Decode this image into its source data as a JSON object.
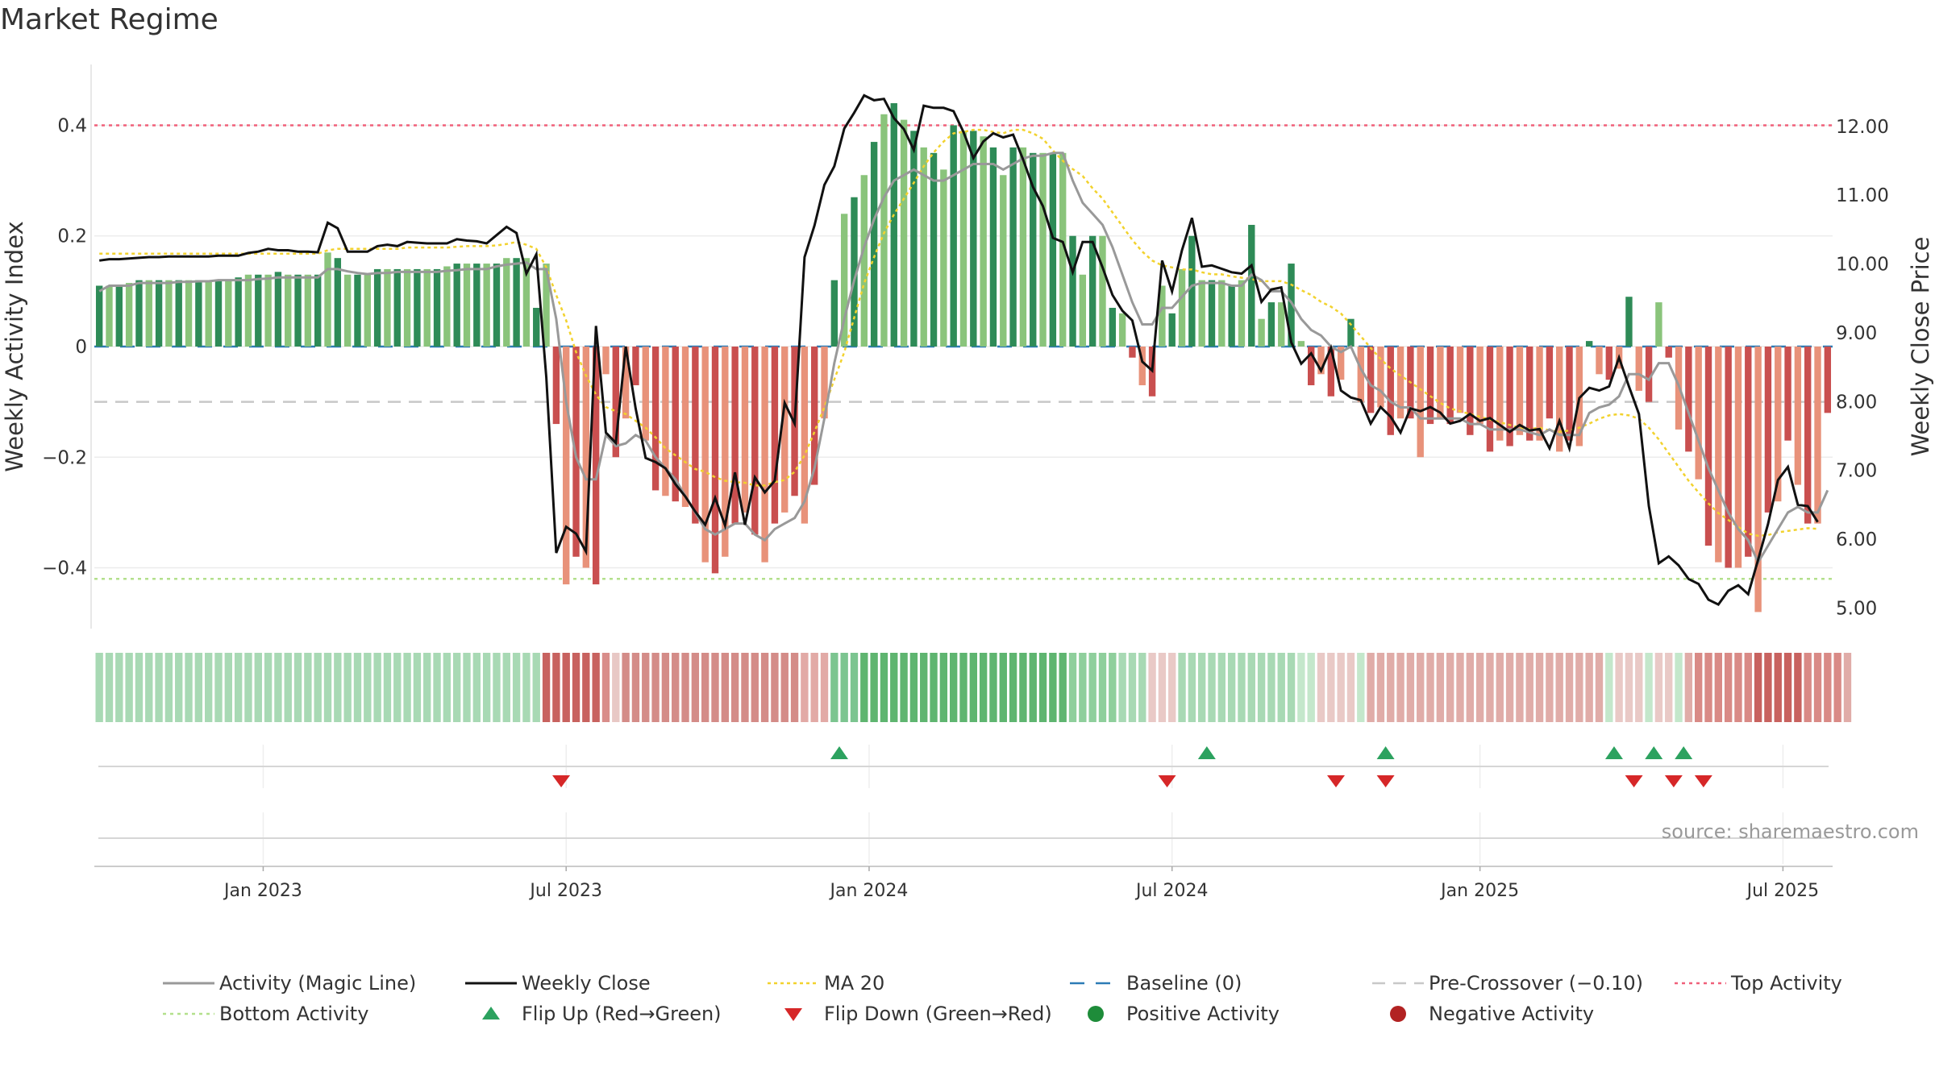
{
  "title": "Market Regime",
  "source": "source: sharemaestro.com",
  "colors": {
    "dark_green": "#2e8b57",
    "light_green": "#8ac47b",
    "dark_red": "#c94f4f",
    "light_red": "#e8927a",
    "magic_line": "#999999",
    "close_line": "#111111",
    "ma20": "#f2d22e",
    "baseline": "#2c7bb6",
    "pre_crossover": "#c8c8c8",
    "top_activity": "#f0607a",
    "bottom_activity": "#b3e08c",
    "flip_up": "#2ca25f",
    "flip_down": "#d62728",
    "positive": "#1e8c3a",
    "negative": "#b22222"
  },
  "legend": [
    {
      "label": "Activity (Magic Line)",
      "icon": "gray-solid-line"
    },
    {
      "label": "Weekly Close",
      "icon": "black-solid-line"
    },
    {
      "label": "MA 20",
      "icon": "yellow-dotted-line"
    },
    {
      "label": "Baseline (0)",
      "icon": "blue-dashed-line"
    },
    {
      "label": "Pre-Crossover (−0.10)",
      "icon": "gray-dashed-line"
    },
    {
      "label": "Top Activity",
      "icon": "pink-dotted-line"
    },
    {
      "label": "Bottom Activity",
      "icon": "green-dotted-line"
    },
    {
      "label": "Flip Up (Red→Green)",
      "icon": "up-triangle"
    },
    {
      "label": "Flip Down (Green→Red)",
      "icon": "down-triangle"
    },
    {
      "label": "Positive Activity",
      "icon": "green-dot"
    },
    {
      "label": "Negative Activity",
      "icon": "red-dot"
    }
  ],
  "chart_data": {
    "type": "bar",
    "ylabel": "Weekly Activity Index",
    "y2label": "Weekly Close Price",
    "ylim": [
      -0.51,
      0.51
    ],
    "y2lim": [
      4.7,
      12.9
    ],
    "yticks": [
      {
        "v": 0.4,
        "label": "0.4"
      },
      {
        "v": 0.2,
        "label": "0.2"
      },
      {
        "v": 0,
        "label": "0"
      },
      {
        "v": -0.2,
        "label": "−0.2"
      },
      {
        "v": -0.4,
        "label": "−0.4"
      }
    ],
    "y2ticks": [
      {
        "v": 12,
        "label": "12.00"
      },
      {
        "v": 11,
        "label": "11.00"
      },
      {
        "v": 10,
        "label": "10.00"
      },
      {
        "v": 9,
        "label": "9.00"
      },
      {
        "v": 8,
        "label": "8.00"
      },
      {
        "v": 7,
        "label": "7.00"
      },
      {
        "v": 6,
        "label": "6.00"
      },
      {
        "v": 5,
        "label": "5.00"
      }
    ],
    "xticks": [
      {
        "label": "Jan 2023",
        "week": 17
      },
      {
        "label": "Jul 2023",
        "week": 47.5
      },
      {
        "label": "Jan 2024",
        "week": 78
      },
      {
        "label": "Jul 2024",
        "week": 108.5
      },
      {
        "label": "Jan 2025",
        "week": 139.5
      },
      {
        "label": "Jul 2025",
        "week": 170
      }
    ],
    "reference_lines": {
      "top_activity": 0.4,
      "bottom_activity": -0.42,
      "pre_crossover": -0.1,
      "baseline": 0
    },
    "grid": true,
    "legend_position": "bottom",
    "activity": [
      0.11,
      0.11,
      0.11,
      0.115,
      0.12,
      0.12,
      0.12,
      0.12,
      0.12,
      0.12,
      0.12,
      0.12,
      0.12,
      0.12,
      0.125,
      0.13,
      0.13,
      0.13,
      0.135,
      0.13,
      0.13,
      0.13,
      0.13,
      0.17,
      0.16,
      0.13,
      0.13,
      0.13,
      0.14,
      0.14,
      0.14,
      0.14,
      0.14,
      0.14,
      0.14,
      0.145,
      0.15,
      0.15,
      0.15,
      0.15,
      0.15,
      0.16,
      0.16,
      0.16,
      0.07,
      0.15,
      -0.14,
      -0.43,
      -0.38,
      -0.4,
      -0.43,
      -0.05,
      -0.2,
      -0.13,
      -0.07,
      -0.17,
      -0.26,
      -0.27,
      -0.28,
      -0.29,
      -0.32,
      -0.39,
      -0.41,
      -0.38,
      -0.32,
      -0.3,
      -0.34,
      -0.39,
      -0.32,
      -0.3,
      -0.27,
      -0.32,
      -0.25,
      -0.13,
      0.12,
      0.24,
      0.27,
      0.31,
      0.37,
      0.42,
      0.44,
      0.41,
      0.39,
      0.36,
      0.35,
      0.32,
      0.4,
      0.39,
      0.39,
      0.38,
      0.36,
      0.31,
      0.36,
      0.36,
      0.35,
      0.35,
      0.35,
      0.35,
      0.2,
      0.13,
      0.2,
      0.2,
      0.07,
      0.06,
      -0.02,
      -0.07,
      -0.09,
      0.11,
      0.06,
      0.14,
      0.2,
      0.12,
      0.12,
      0.12,
      0.11,
      0.12,
      0.22,
      0.05,
      0.08,
      0.08,
      0.15,
      0.01,
      -0.07,
      -0.05,
      -0.09,
      -0.06,
      0.05,
      -0.1,
      -0.12,
      -0.11,
      -0.16,
      -0.13,
      -0.13,
      -0.2,
      -0.14,
      -0.13,
      -0.14,
      -0.12,
      -0.16,
      -0.14,
      -0.19,
      -0.17,
      -0.18,
      -0.16,
      -0.17,
      -0.17,
      -0.13,
      -0.19,
      -0.17,
      -0.18,
      0.01,
      -0.05,
      -0.06,
      -0.04,
      0.09,
      -0.08,
      -0.1,
      0.08,
      -0.02,
      -0.15,
      -0.19,
      -0.24,
      -0.36,
      -0.39,
      -0.4,
      -0.4,
      -0.38,
      -0.48,
      -0.3,
      -0.28,
      -0.17,
      -0.25,
      -0.32,
      -0.32,
      -0.12
    ],
    "magic_line": [
      0.1,
      0.11,
      0.11,
      0.11,
      0.115,
      0.115,
      0.115,
      0.115,
      0.117,
      0.117,
      0.118,
      0.118,
      0.12,
      0.12,
      0.12,
      0.12,
      0.122,
      0.123,
      0.125,
      0.125,
      0.125,
      0.125,
      0.125,
      0.14,
      0.14,
      0.136,
      0.133,
      0.131,
      0.133,
      0.133,
      0.135,
      0.135,
      0.135,
      0.135,
      0.135,
      0.137,
      0.138,
      0.14,
      0.14,
      0.14,
      0.145,
      0.148,
      0.15,
      0.152,
      0.14,
      0.14,
      0.05,
      -0.1,
      -0.2,
      -0.24,
      -0.24,
      -0.16,
      -0.18,
      -0.175,
      -0.16,
      -0.17,
      -0.2,
      -0.22,
      -0.24,
      -0.27,
      -0.3,
      -0.33,
      -0.34,
      -0.33,
      -0.32,
      -0.32,
      -0.34,
      -0.35,
      -0.33,
      -0.32,
      -0.31,
      -0.28,
      -0.22,
      -0.13,
      -0.03,
      0.05,
      0.12,
      0.18,
      0.23,
      0.27,
      0.3,
      0.31,
      0.32,
      0.31,
      0.3,
      0.3,
      0.31,
      0.32,
      0.33,
      0.33,
      0.33,
      0.32,
      0.33,
      0.34,
      0.345,
      0.345,
      0.35,
      0.35,
      0.3,
      0.26,
      0.24,
      0.22,
      0.18,
      0.13,
      0.08,
      0.04,
      0.04,
      0.07,
      0.07,
      0.09,
      0.11,
      0.115,
      0.115,
      0.115,
      0.11,
      0.11,
      0.13,
      0.12,
      0.1,
      0.1,
      0.08,
      0.05,
      0.03,
      0.02,
      0.0,
      -0.01,
      0.0,
      -0.04,
      -0.07,
      -0.08,
      -0.1,
      -0.11,
      -0.11,
      -0.13,
      -0.13,
      -0.13,
      -0.13,
      -0.13,
      -0.14,
      -0.14,
      -0.15,
      -0.15,
      -0.15,
      -0.15,
      -0.155,
      -0.16,
      -0.15,
      -0.16,
      -0.16,
      -0.16,
      -0.12,
      -0.11,
      -0.105,
      -0.09,
      -0.05,
      -0.05,
      -0.06,
      -0.03,
      -0.03,
      -0.07,
      -0.12,
      -0.17,
      -0.22,
      -0.26,
      -0.3,
      -0.33,
      -0.35,
      -0.39,
      -0.36,
      -0.33,
      -0.3,
      -0.29,
      -0.3,
      -0.3,
      -0.26
    ],
    "weekly_close": [
      10.05,
      10.07,
      10.07,
      10.08,
      10.09,
      10.1,
      10.1,
      10.11,
      10.11,
      10.11,
      10.11,
      10.11,
      10.12,
      10.12,
      10.12,
      10.16,
      10.18,
      10.22,
      10.2,
      10.2,
      10.18,
      10.18,
      10.17,
      10.6,
      10.52,
      10.18,
      10.18,
      10.18,
      10.26,
      10.28,
      10.26,
      10.32,
      10.31,
      10.3,
      10.3,
      10.3,
      10.36,
      10.34,
      10.33,
      10.3,
      10.42,
      10.54,
      10.45,
      9.86,
      10.14,
      8.35,
      5.8,
      6.18,
      6.08,
      5.82,
      9.1,
      7.55,
      7.4,
      8.8,
      7.9,
      7.18,
      7.12,
      7.03,
      6.8,
      6.62,
      6.4,
      6.21,
      6.6,
      6.2,
      6.97,
      6.21,
      6.9,
      6.68,
      6.85,
      7.98,
      7.68,
      10.1,
      10.56,
      11.15,
      11.42,
      11.97,
      12.2,
      12.45,
      12.38,
      12.4,
      12.12,
      11.96,
      11.66,
      12.3,
      12.27,
      12.27,
      12.22,
      11.92,
      11.54,
      11.78,
      11.9,
      11.84,
      11.88,
      11.52,
      11.12,
      10.84,
      10.38,
      10.32,
      9.88,
      10.32,
      10.32,
      9.95,
      9.55,
      9.32,
      9.18,
      8.58,
      8.45,
      10.05,
      9.6,
      10.2,
      10.67,
      9.96,
      9.98,
      9.93,
      9.88,
      9.86,
      9.98,
      9.45,
      9.63,
      9.66,
      8.86,
      8.55,
      8.7,
      8.45,
      8.78,
      8.16,
      8.06,
      8.02,
      7.68,
      7.92,
      7.78,
      7.55,
      7.9,
      7.86,
      7.92,
      7.84,
      7.68,
      7.72,
      7.82,
      7.72,
      7.76,
      7.66,
      7.56,
      7.66,
      7.58,
      7.6,
      7.32,
      7.72,
      7.32,
      8.05,
      8.2,
      8.16,
      8.22,
      8.64,
      8.22,
      7.82,
      6.48,
      5.65,
      5.75,
      5.62,
      5.42,
      5.35,
      5.12,
      5.05,
      5.25,
      5.33,
      5.2,
      5.7,
      6.22,
      6.86,
      7.05,
      6.5,
      6.48,
      6.25
    ],
    "ma20": [
      10.15,
      10.15,
      10.15,
      10.15,
      10.15,
      10.15,
      10.15,
      10.15,
      10.15,
      10.15,
      10.15,
      10.15,
      10.15,
      10.15,
      10.15,
      10.15,
      10.15,
      10.15,
      10.15,
      10.15,
      10.15,
      10.15,
      10.15,
      10.2,
      10.22,
      10.22,
      10.22,
      10.22,
      10.22,
      10.22,
      10.22,
      10.24,
      10.24,
      10.24,
      10.24,
      10.24,
      10.25,
      10.26,
      10.26,
      10.26,
      10.27,
      10.29,
      10.32,
      10.28,
      10.22,
      9.95,
      9.55,
      9.18,
      8.72,
      8.38,
      8.1,
      7.92,
      7.86,
      7.82,
      7.72,
      7.62,
      7.48,
      7.32,
      7.22,
      7.12,
      7.02,
      6.98,
      6.9,
      6.85,
      6.83,
      6.82,
      6.78,
      6.78,
      6.83,
      6.86,
      6.98,
      7.22,
      7.56,
      7.92,
      8.32,
      8.72,
      9.22,
      9.72,
      10.1,
      10.45,
      10.72,
      10.95,
      11.18,
      11.42,
      11.62,
      11.78,
      11.9,
      11.92,
      11.95,
      11.95,
      11.92,
      11.9,
      11.95,
      11.95,
      11.9,
      11.82,
      11.65,
      11.5,
      11.38,
      11.28,
      11.1,
      10.95,
      10.75,
      10.55,
      10.35,
      10.18,
      10.05,
      9.98,
      9.95,
      9.92,
      9.92,
      9.88,
      9.85,
      9.85,
      9.82,
      9.8,
      9.78,
      9.75,
      9.75,
      9.75,
      9.7,
      9.62,
      9.55,
      9.45,
      9.38,
      9.28,
      9.12,
      8.95,
      8.78,
      8.62,
      8.48,
      8.38,
      8.28,
      8.18,
      8.08,
      7.98,
      7.9,
      7.86,
      7.82,
      7.78,
      7.74,
      7.7,
      7.66,
      7.62,
      7.6,
      7.62,
      7.58,
      7.56,
      7.58,
      7.62,
      7.68,
      7.75,
      7.8,
      7.82,
      7.8,
      7.75,
      7.62,
      7.45,
      7.25,
      7.05,
      6.85,
      6.68,
      6.52,
      6.38,
      6.28,
      6.18,
      6.08,
      6.05,
      6.06,
      6.1,
      6.12,
      6.14,
      6.16,
      6.15
    ],
    "regime_strip": [
      "#a8d9b4",
      "#a8d9b4",
      "#a8d9b4",
      "#a8d9b4",
      "#a8d9b4",
      "#a8d9b4",
      "#a8d9b4",
      "#a8d9b4",
      "#a8d9b4",
      "#a8d9b4",
      "#a8d9b4",
      "#a8d9b4",
      "#a8d9b4",
      "#a8d9b4",
      "#a8d9b4",
      "#a8d9b4",
      "#a8d9b4",
      "#a8d9b4",
      "#a8d9b4",
      "#a8d9b4",
      "#a8d9b4",
      "#a8d9b4",
      "#a8d9b4",
      "#a8d9b4",
      "#a8d9b4",
      "#a8d9b4",
      "#a8d9b4",
      "#a8d9b4",
      "#a8d9b4",
      "#a8d9b4",
      "#a8d9b4",
      "#a8d9b4",
      "#a8d9b4",
      "#a8d9b4",
      "#a8d9b4",
      "#a8d9b4",
      "#a8d9b4",
      "#a8d9b4",
      "#a8d9b4",
      "#a8d9b4",
      "#a8d9b4",
      "#a8d9b4",
      "#a8d9b4",
      "#a8d9b4",
      "#a8d9b4",
      "#c8625f",
      "#c8625f",
      "#c8625f",
      "#c8625f",
      "#c8625f",
      "#c8625f",
      "#d98d8a",
      "#e8c8c5",
      "#d48c88",
      "#d48c88",
      "#d48c88",
      "#d48c88",
      "#d48c88",
      "#d48c88",
      "#d48c88",
      "#d48c88",
      "#d48c88",
      "#d48c88",
      "#d48c88",
      "#d48c88",
      "#d48c88",
      "#d48c88",
      "#d48c88",
      "#d48c88",
      "#d48c88",
      "#d48c88",
      "#e2aaa6",
      "#e2aaa6",
      "#e2aaa6",
      "#7cc590",
      "#7cc590",
      "#7cc590",
      "#5fb570",
      "#5fb570",
      "#5fb570",
      "#5fb570",
      "#5fb570",
      "#5fb570",
      "#5fb570",
      "#5fb570",
      "#5fb570",
      "#5fb570",
      "#5fb570",
      "#5fb570",
      "#5fb570",
      "#5fb570",
      "#5fb570",
      "#5fb570",
      "#5fb570",
      "#5fb570",
      "#5fb570",
      "#5fb570",
      "#5fb570",
      "#8fcf9c",
      "#8fcf9c",
      "#8fcf9c",
      "#8fcf9c",
      "#8fcf9c",
      "#a8d9b4",
      "#a8d9b4",
      "#a8d9b4",
      "#e9c9c6",
      "#e9c9c6",
      "#e9c9c6",
      "#a8d9b4",
      "#a8d9b4",
      "#a8d9b4",
      "#a8d9b4",
      "#a8d9b4",
      "#a8d9b4",
      "#a8d9b4",
      "#a8d9b4",
      "#a8d9b4",
      "#a8d9b4",
      "#a8d9b4",
      "#a8d9b4",
      "#c4e7cb",
      "#c4e7cb",
      "#e9c9c6",
      "#e9c9c6",
      "#e9c9c6",
      "#e9c9c6",
      "#c4e7cb",
      "#e0aca8",
      "#e0aca8",
      "#e0aca8",
      "#e0aca8",
      "#e0aca8",
      "#e0aca8",
      "#e0aca8",
      "#e0aca8",
      "#e0aca8",
      "#e0aca8",
      "#e0aca8",
      "#e0aca8",
      "#e0aca8",
      "#e0aca8",
      "#e0aca8",
      "#e0aca8",
      "#e0aca8",
      "#e0aca8",
      "#e0aca8",
      "#e0aca8",
      "#e0aca8",
      "#e0aca8",
      "#e0aca8",
      "#e0aca8",
      "#c4e7cb",
      "#e9c9c6",
      "#e9c9c6",
      "#e9c9c6",
      "#c4e7cb",
      "#e9c9c6",
      "#e9c9c6",
      "#c4e7cb",
      "#e0aca8",
      "#d98a86",
      "#d98a86",
      "#d98a86",
      "#d98a86",
      "#d98a86",
      "#d98a86",
      "#c8625f",
      "#c8625f",
      "#c8625f",
      "#c8625f",
      "#c8625f",
      "#d98a86",
      "#d98a86",
      "#d98a86",
      "#d98a86",
      "#e0aca8"
    ],
    "flip_up_weeks": [
      75,
      112,
      130,
      153,
      157,
      160
    ],
    "flip_down_weeks": [
      47,
      108,
      125,
      130,
      155,
      159,
      162
    ]
  }
}
